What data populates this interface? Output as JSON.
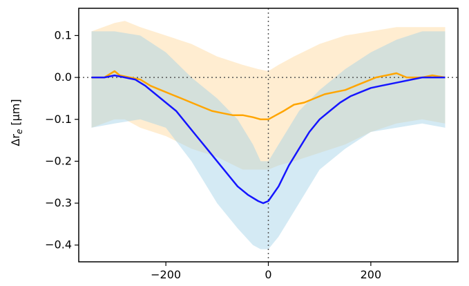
{
  "chart_data": {
    "type": "line",
    "title": "",
    "xlabel": "",
    "ylabel": "Δr",
    "ylabel_subscript": "e",
    "ylabel_unit": " [μm]",
    "xlim": [
      -370,
      370
    ],
    "ylim": [
      -0.44,
      0.165
    ],
    "xticks": [
      -200,
      0,
      200
    ],
    "xtick_labels": [
      "−200",
      "0",
      "200"
    ],
    "yticks": [
      0.1,
      0.0,
      -0.1,
      -0.2,
      -0.3,
      -0.4
    ],
    "ytick_labels": [
      "0.1",
      "0.0",
      "−0.1",
      "−0.2",
      "−0.3",
      "−0.4"
    ],
    "grid": false,
    "reference_lines": {
      "x": 0,
      "y": 0,
      "style": "dotted",
      "color": "#555555"
    },
    "bands": [
      {
        "color": "#ffd699",
        "opacity": 0.45,
        "x": [
          -345,
          -300,
          -280,
          -250,
          -200,
          -150,
          -100,
          -50,
          -20,
          0,
          20,
          50,
          100,
          150,
          200,
          250,
          300,
          345
        ],
        "upper": [
          0.11,
          0.13,
          0.135,
          0.12,
          0.1,
          0.08,
          0.05,
          0.03,
          0.02,
          0.015,
          0.03,
          0.05,
          0.08,
          0.1,
          0.11,
          0.12,
          0.12,
          0.12
        ],
        "lower": [
          -0.12,
          -0.1,
          -0.1,
          -0.12,
          -0.14,
          -0.17,
          -0.19,
          -0.22,
          -0.22,
          -0.22,
          -0.21,
          -0.2,
          -0.18,
          -0.16,
          -0.13,
          -0.11,
          -0.1,
          -0.11
        ]
      },
      {
        "color": "#9fd0e6",
        "opacity": 0.45,
        "x": [
          -345,
          -300,
          -250,
          -200,
          -150,
          -100,
          -60,
          -30,
          -15,
          0,
          20,
          60,
          100,
          150,
          200,
          250,
          300,
          345
        ],
        "upper": [
          0.11,
          0.11,
          0.1,
          0.06,
          0.0,
          -0.05,
          -0.1,
          -0.16,
          -0.2,
          -0.2,
          -0.16,
          -0.08,
          -0.03,
          0.02,
          0.06,
          0.09,
          0.11,
          0.11
        ],
        "lower": [
          -0.12,
          -0.11,
          -0.1,
          -0.12,
          -0.2,
          -0.3,
          -0.36,
          -0.4,
          -0.41,
          -0.41,
          -0.38,
          -0.3,
          -0.22,
          -0.17,
          -0.13,
          -0.12,
          -0.11,
          -0.12
        ]
      }
    ],
    "series": [
      {
        "color": "#ffa500",
        "x": [
          -345,
          -320,
          -300,
          -290,
          -270,
          -250,
          -230,
          -210,
          -190,
          -170,
          -150,
          -130,
          -110,
          -90,
          -70,
          -50,
          -30,
          -15,
          0,
          15,
          30,
          50,
          70,
          90,
          110,
          130,
          150,
          170,
          190,
          210,
          230,
          250,
          270,
          300,
          320,
          345
        ],
        "values": [
          0.0,
          0.0,
          0.015,
          0.005,
          0.0,
          -0.005,
          -0.02,
          -0.03,
          -0.04,
          -0.05,
          -0.06,
          -0.07,
          -0.08,
          -0.085,
          -0.09,
          -0.09,
          -0.095,
          -0.1,
          -0.1,
          -0.09,
          -0.08,
          -0.065,
          -0.06,
          -0.05,
          -0.04,
          -0.035,
          -0.03,
          -0.02,
          -0.01,
          0.0,
          0.005,
          0.01,
          0.0,
          0.0,
          0.005,
          0.0
        ]
      },
      {
        "color": "#1515ff",
        "x": [
          -345,
          -320,
          -300,
          -280,
          -260,
          -240,
          -220,
          -200,
          -180,
          -160,
          -140,
          -120,
          -100,
          -80,
          -60,
          -40,
          -20,
          -10,
          0,
          20,
          40,
          60,
          80,
          100,
          120,
          140,
          160,
          180,
          200,
          220,
          240,
          260,
          280,
          300,
          320,
          345
        ],
        "values": [
          0.0,
          0.0,
          0.005,
          0.0,
          -0.005,
          -0.02,
          -0.04,
          -0.06,
          -0.08,
          -0.11,
          -0.14,
          -0.17,
          -0.2,
          -0.23,
          -0.26,
          -0.28,
          -0.295,
          -0.3,
          -0.295,
          -0.26,
          -0.21,
          -0.17,
          -0.13,
          -0.1,
          -0.08,
          -0.06,
          -0.045,
          -0.035,
          -0.025,
          -0.02,
          -0.015,
          -0.01,
          -0.005,
          0.0,
          0.0,
          0.0
        ]
      }
    ]
  }
}
